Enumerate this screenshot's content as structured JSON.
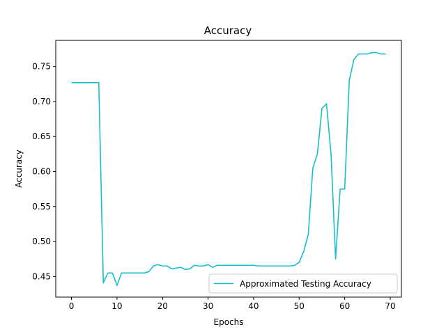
{
  "chart_data": {
    "type": "line",
    "title": "Accuracy",
    "xlabel": "Epochs",
    "ylabel": "Accuracy",
    "xlim": [
      -3.45,
      72.45
    ],
    "ylim": [
      0.4205,
      0.7875
    ],
    "xticks": [
      0,
      10,
      20,
      30,
      40,
      50,
      60,
      70
    ],
    "xtick_labels": [
      "0",
      "10",
      "20",
      "30",
      "40",
      "50",
      "60",
      "70"
    ],
    "yticks": [
      0.45,
      0.5,
      0.55,
      0.6,
      0.65,
      0.7,
      0.75
    ],
    "ytick_labels": [
      "0.45",
      "0.50",
      "0.55",
      "0.60",
      "0.65",
      "0.70",
      "0.75"
    ],
    "grid": false,
    "legend_position": "lower-right",
    "series": [
      {
        "name": "Approximated Testing Accuracy",
        "color": "#17becf",
        "x": [
          0,
          1,
          2,
          3,
          4,
          5,
          6,
          7,
          8,
          9,
          10,
          11,
          12,
          13,
          14,
          15,
          16,
          17,
          18,
          19,
          20,
          21,
          22,
          23,
          24,
          25,
          26,
          27,
          28,
          29,
          30,
          31,
          32,
          33,
          34,
          35,
          36,
          37,
          38,
          39,
          40,
          41,
          42,
          43,
          44,
          45,
          46,
          47,
          48,
          49,
          50,
          51,
          52,
          53,
          54,
          55,
          56,
          57,
          58,
          59,
          60,
          61,
          62,
          63,
          64,
          65,
          66,
          67,
          68,
          69
        ],
        "y": [
          0.727,
          0.727,
          0.727,
          0.727,
          0.727,
          0.727,
          0.727,
          0.441,
          0.455,
          0.455,
          0.437,
          0.455,
          0.455,
          0.455,
          0.455,
          0.455,
          0.455,
          0.457,
          0.465,
          0.467,
          0.465,
          0.465,
          0.461,
          0.462,
          0.463,
          0.46,
          0.461,
          0.466,
          0.465,
          0.465,
          0.467,
          0.463,
          0.466,
          0.466,
          0.466,
          0.466,
          0.466,
          0.466,
          0.466,
          0.466,
          0.466,
          0.465,
          0.465,
          0.465,
          0.465,
          0.465,
          0.465,
          0.465,
          0.465,
          0.466,
          0.47,
          0.486,
          0.51,
          0.605,
          0.625,
          0.69,
          0.697,
          0.625,
          0.475,
          0.575,
          0.575,
          0.73,
          0.76,
          0.768,
          0.768,
          0.768,
          0.77,
          0.77,
          0.768,
          0.768
        ]
      }
    ]
  }
}
